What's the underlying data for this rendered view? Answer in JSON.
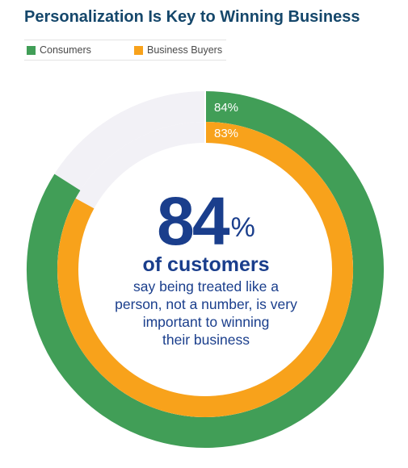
{
  "title": "Personalization Is Key to Winning Business",
  "legend": {
    "consumers": "Consumers",
    "business_buyers": "Business Buyers"
  },
  "center": {
    "number": "84",
    "percent_sign": "%",
    "subhead": "of customers",
    "body_lines": [
      "say being treated like a",
      "person, not a number, is very",
      "important to winning",
      "their business"
    ]
  },
  "colors": {
    "consumers": "#419e57",
    "business_buyers": "#f8a21b",
    "track": "#f2f1f6",
    "title": "#15476b",
    "center_text": "#1a3e8c"
  },
  "chart_data": {
    "type": "pie",
    "subtype": "radial-donut",
    "title": "Personalization Is Key to Winning Business",
    "unit": "%",
    "max": 100,
    "series": [
      {
        "name": "Consumers",
        "value": 84,
        "label": "84%"
      },
      {
        "name": "Business Buyers",
        "value": 83,
        "label": "83%"
      }
    ],
    "legend_position": "top-left"
  }
}
